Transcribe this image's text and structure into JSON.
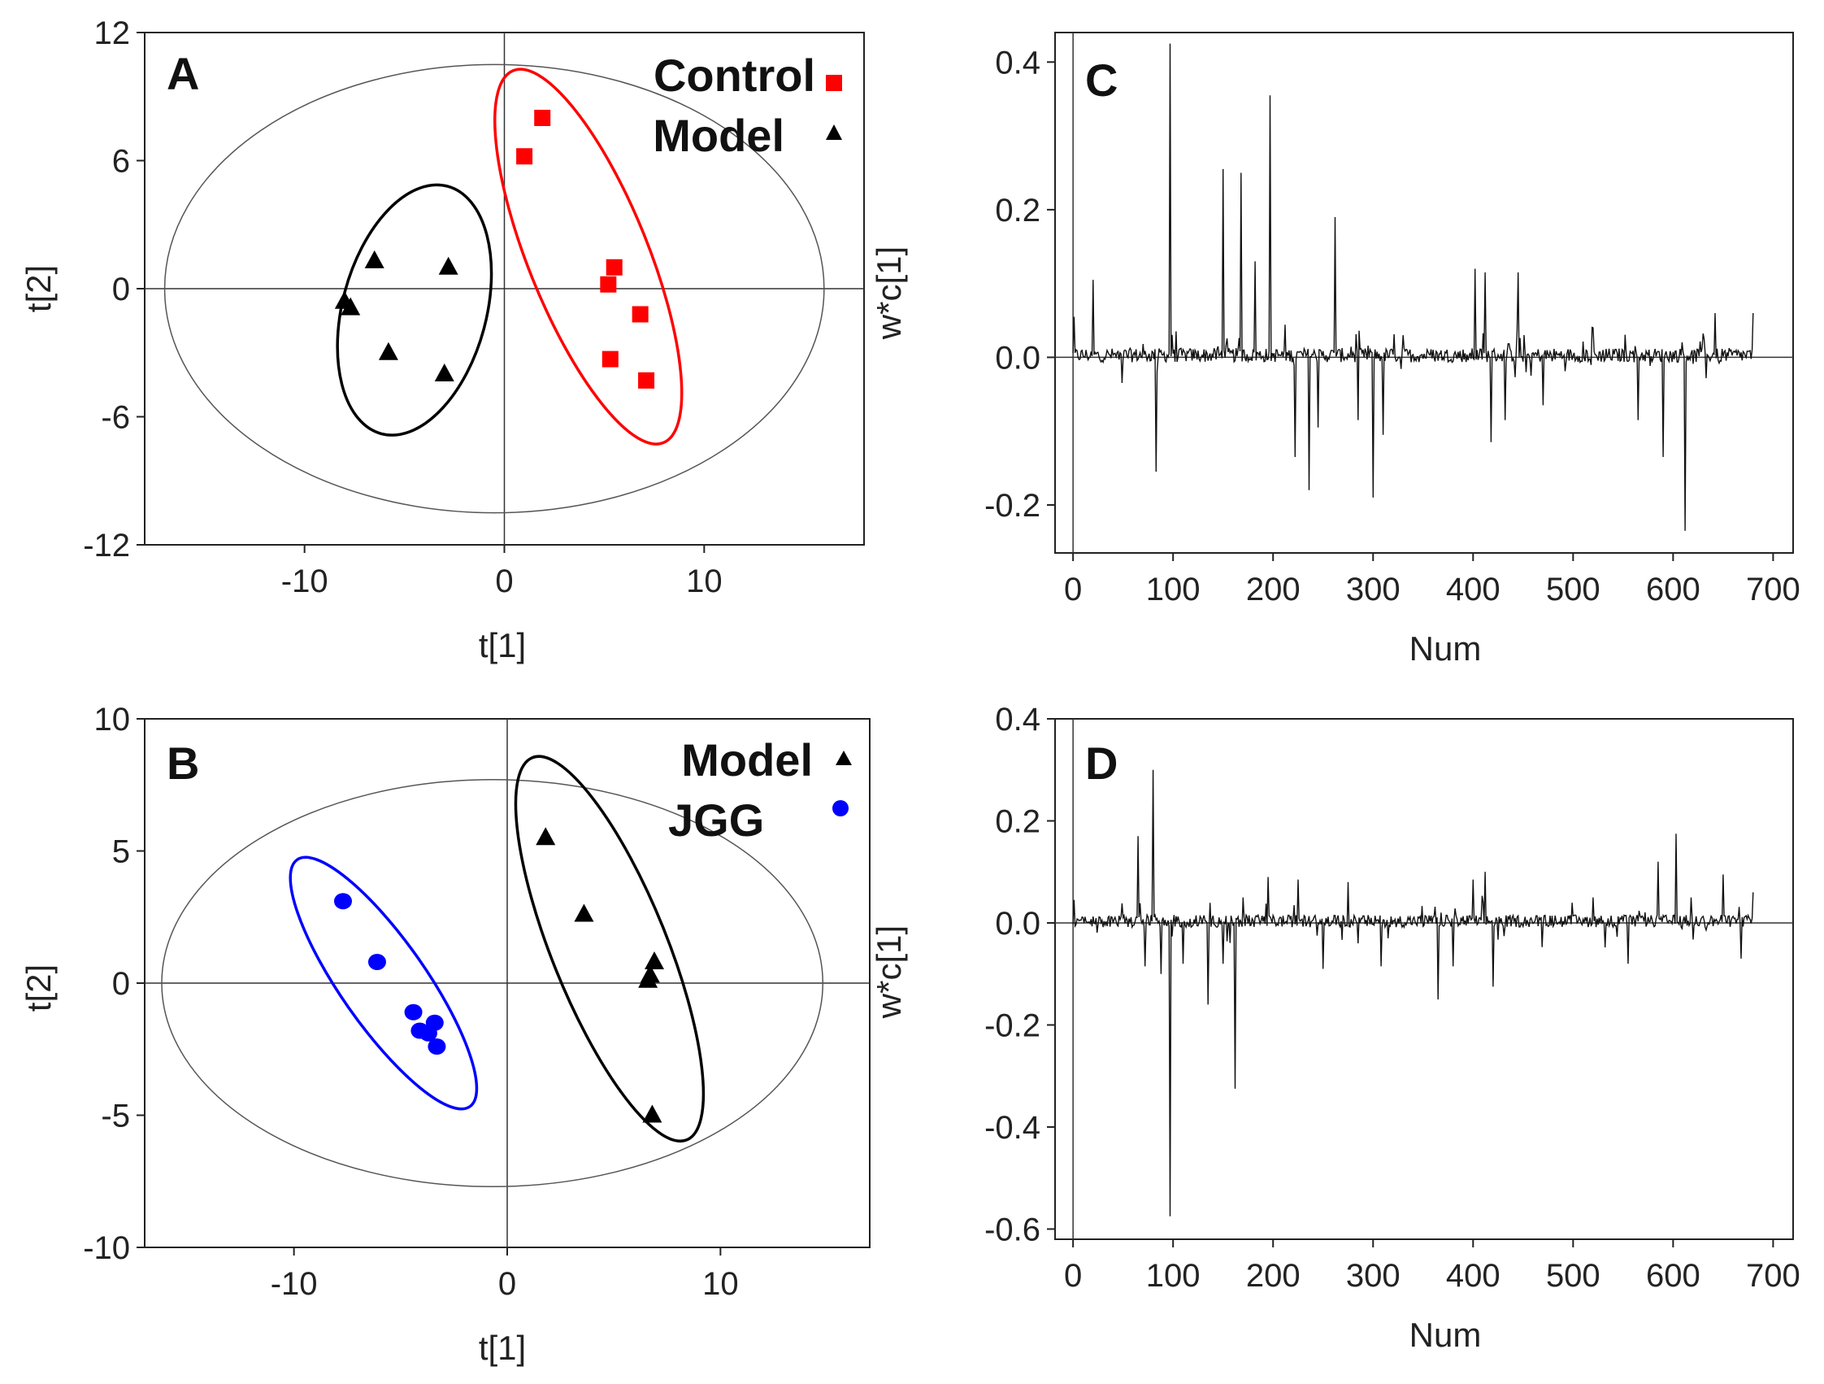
{
  "colors": {
    "control": "#ff0000",
    "model": "#000000",
    "jgg": "#0000ff",
    "axis": "#222222",
    "ellipse": "#555555"
  },
  "chart_data": [
    {
      "panel": "A",
      "type": "scatter",
      "xlabel": "t[1]",
      "ylabel": "t[2]",
      "xlim": [
        -18,
        18
      ],
      "ylim": [
        -12,
        12
      ],
      "xticks": [
        -10,
        0,
        10
      ],
      "xtick_labels": [
        "-10",
        "0",
        "10"
      ],
      "yticks": [
        12,
        6,
        0,
        -6,
        -12
      ],
      "ytick_labels": [
        "12",
        "6",
        "0",
        "-6",
        "-12"
      ],
      "hotelling_ellipse": {
        "cx": -0.5,
        "cy": 0,
        "rx": 16.5,
        "ry": 10.5
      },
      "series": [
        {
          "name": "Control",
          "marker": "square",
          "color_key": "control",
          "points": [
            [
              1.0,
              6.2
            ],
            [
              1.9,
              8.0
            ],
            [
              5.5,
              1.0
            ],
            [
              5.2,
              0.2
            ],
            [
              6.8,
              -1.2
            ],
            [
              5.3,
              -3.3
            ],
            [
              7.1,
              -4.3
            ]
          ],
          "group_ellipse": {
            "cx": 4.2,
            "cy": 1.5,
            "rx": 3.0,
            "ry": 9.4,
            "angle": -22
          }
        },
        {
          "name": "Model",
          "marker": "triangle",
          "color_key": "model",
          "points": [
            [
              -6.5,
              1.3
            ],
            [
              -2.8,
              1.0
            ],
            [
              -8.0,
              -0.6
            ],
            [
              -7.7,
              -0.9
            ],
            [
              -5.8,
              -3.0
            ],
            [
              -3.0,
              -4.0
            ]
          ],
          "group_ellipse": {
            "cx": -4.5,
            "cy": -1.0,
            "rx": 3.6,
            "ry": 6.0,
            "angle": 15
          }
        }
      ],
      "legend": [
        {
          "label": "Control",
          "marker": "square",
          "color_key": "control"
        },
        {
          "label": "Model",
          "marker": "triangle",
          "color_key": "model"
        }
      ]
    },
    {
      "panel": "B",
      "type": "scatter",
      "xlabel": "t[1]",
      "ylabel": "t[2]",
      "xlim": [
        -17,
        17
      ],
      "ylim": [
        -10,
        10
      ],
      "xticks": [
        -10,
        0,
        10
      ],
      "xtick_labels": [
        "-10",
        "0",
        "10"
      ],
      "yticks": [
        10,
        5,
        0,
        -5,
        -10
      ],
      "ytick_labels": [
        "10",
        "5",
        "0",
        "-5",
        "-10"
      ],
      "hotelling_ellipse": {
        "cx": -0.7,
        "cy": 0,
        "rx": 15.5,
        "ry": 7.7
      },
      "series": [
        {
          "name": "Model",
          "marker": "triangle",
          "color_key": "model",
          "points": [
            [
              1.8,
              5.5
            ],
            [
              3.6,
              2.6
            ],
            [
              6.6,
              0.1
            ],
            [
              6.9,
              0.8
            ],
            [
              6.7,
              0.3
            ],
            [
              6.8,
              -5.0
            ]
          ],
          "group_ellipse": {
            "cx": 4.8,
            "cy": 1.3,
            "rx": 2.7,
            "ry": 7.8,
            "angle": -22
          }
        },
        {
          "name": "JGG",
          "marker": "circle",
          "color_key": "jgg",
          "points": [
            [
              -7.7,
              3.1
            ],
            [
              -6.1,
              0.8
            ],
            [
              -4.4,
              -1.1
            ],
            [
              -4.1,
              -1.8
            ],
            [
              -3.7,
              -1.9
            ],
            [
              -3.4,
              -1.5
            ],
            [
              -3.3,
              -2.4
            ]
          ],
          "group_ellipse": {
            "cx": -5.8,
            "cy": 0.0,
            "rx": 2.0,
            "ry": 5.7,
            "angle": -35
          }
        }
      ],
      "legend": [
        {
          "label": "Model",
          "marker": "triangle",
          "color_key": "model"
        },
        {
          "label": "JGG",
          "marker": "circle",
          "color_key": "jgg"
        }
      ]
    },
    {
      "panel": "C",
      "type": "line",
      "xlabel": "Num",
      "ylabel": "w*c[1]",
      "xlim": [
        -18,
        720
      ],
      "ylim": [
        -0.265,
        0.44
      ],
      "xticks": [
        0,
        100,
        200,
        300,
        400,
        500,
        600,
        700
      ],
      "xtick_labels": [
        "0",
        "100",
        "200",
        "300",
        "400",
        "500",
        "600",
        "700"
      ],
      "yticks": [
        0.4,
        0.2,
        0.0,
        -0.2
      ],
      "ytick_labels": [
        "0.4",
        "0.2",
        "0.0",
        "-0.2"
      ],
      "n_points": 680,
      "noise_amplitude": 0.012,
      "spikes": [
        [
          1,
          0.055
        ],
        [
          20,
          0.105
        ],
        [
          83,
          -0.155
        ],
        [
          97,
          0.425
        ],
        [
          150,
          0.255
        ],
        [
          168,
          0.25
        ],
        [
          182,
          0.13
        ],
        [
          197,
          0.355
        ],
        [
          222,
          -0.135
        ],
        [
          236,
          -0.18
        ],
        [
          245,
          -0.095
        ],
        [
          262,
          0.19
        ],
        [
          285,
          -0.085
        ],
        [
          300,
          -0.19
        ],
        [
          310,
          -0.105
        ],
        [
          330,
          0.03
        ],
        [
          402,
          0.12
        ],
        [
          412,
          0.115
        ],
        [
          418,
          -0.115
        ],
        [
          432,
          -0.085
        ],
        [
          445,
          0.115
        ],
        [
          470,
          -0.065
        ],
        [
          520,
          0.04
        ],
        [
          565,
          -0.085
        ],
        [
          590,
          -0.135
        ],
        [
          612,
          -0.235
        ],
        [
          642,
          0.06
        ],
        [
          680,
          -0.055
        ],
        [
          680,
          0.06
        ]
      ]
    },
    {
      "panel": "D",
      "type": "line",
      "xlabel": "Num",
      "ylabel": "w*c[1]",
      "xlim": [
        -18,
        720
      ],
      "ylim": [
        -0.62,
        0.4
      ],
      "xticks": [
        0,
        100,
        200,
        300,
        400,
        500,
        600,
        700
      ],
      "xtick_labels": [
        "0",
        "100",
        "200",
        "300",
        "400",
        "500",
        "600",
        "700"
      ],
      "yticks": [
        0.4,
        0.2,
        0.0,
        -0.2,
        -0.4,
        -0.6
      ],
      "ytick_labels": [
        "0.4",
        "0.2",
        "0.0",
        "-0.2",
        "-0.4",
        "-0.6"
      ],
      "n_points": 680,
      "noise_amplitude": 0.015,
      "spikes": [
        [
          1,
          0.045
        ],
        [
          65,
          0.17
        ],
        [
          72,
          -0.085
        ],
        [
          80,
          0.3
        ],
        [
          88,
          -0.1
        ],
        [
          97,
          -0.575
        ],
        [
          110,
          -0.08
        ],
        [
          135,
          -0.16
        ],
        [
          150,
          -0.08
        ],
        [
          162,
          -0.325
        ],
        [
          170,
          0.05
        ],
        [
          195,
          0.09
        ],
        [
          225,
          0.085
        ],
        [
          250,
          -0.09
        ],
        [
          275,
          0.08
        ],
        [
          308,
          -0.085
        ],
        [
          365,
          -0.15
        ],
        [
          380,
          -0.085
        ],
        [
          400,
          0.085
        ],
        [
          412,
          0.1
        ],
        [
          420,
          -0.125
        ],
        [
          520,
          0.05
        ],
        [
          555,
          -0.08
        ],
        [
          585,
          0.12
        ],
        [
          603,
          0.175
        ],
        [
          618,
          0.05
        ],
        [
          650,
          0.095
        ],
        [
          668,
          -0.07
        ],
        [
          680,
          0.06
        ]
      ]
    }
  ]
}
